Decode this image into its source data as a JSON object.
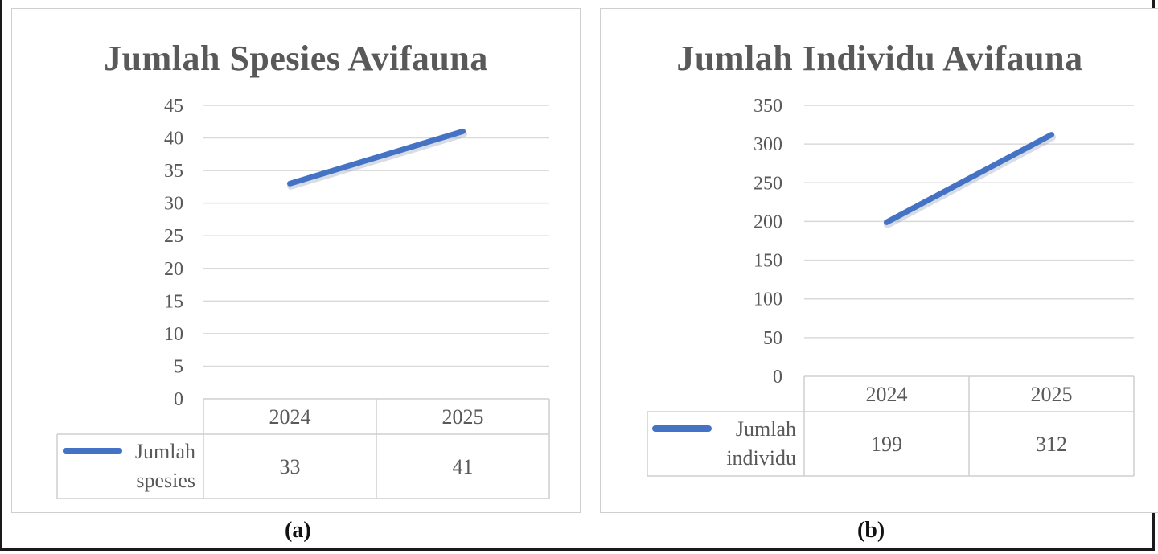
{
  "chart_data": [
    {
      "type": "line",
      "title": "Jumlah Spesies Avifauna",
      "categories": [
        "2024",
        "2025"
      ],
      "series": [
        {
          "name": "Jumlah spesies",
          "values": [
            33,
            41
          ]
        }
      ],
      "ylim": [
        0,
        45
      ],
      "yticks": [
        "0",
        "5",
        "10",
        "15",
        "20",
        "25",
        "30",
        "35",
        "40",
        "45"
      ],
      "legend_lines": [
        "Jumlah",
        "spesies"
      ],
      "data_table": true,
      "grid": true,
      "color": "#4472C4",
      "caption": "(a)"
    },
    {
      "type": "line",
      "title": "Jumlah Individu Avifauna",
      "categories": [
        "2024",
        "2025"
      ],
      "series": [
        {
          "name": "Jumlah individu",
          "values": [
            199,
            312
          ]
        }
      ],
      "ylim": [
        0,
        350
      ],
      "yticks": [
        "0",
        "50",
        "100",
        "150",
        "200",
        "250",
        "300",
        "350"
      ],
      "legend_lines": [
        "Jumlah",
        "individu"
      ],
      "data_table": true,
      "grid": true,
      "color": "#4472C4",
      "caption": "(b)"
    }
  ]
}
